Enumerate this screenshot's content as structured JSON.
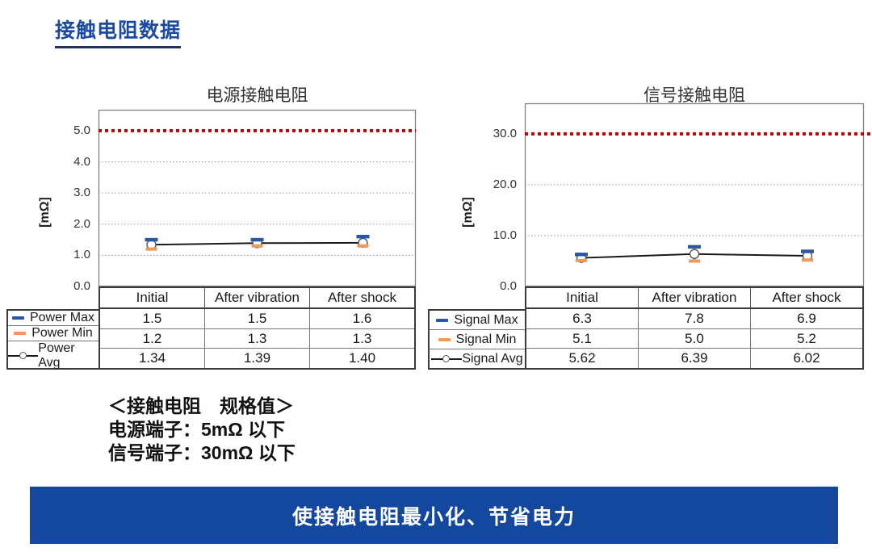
{
  "page": {
    "title": "接触电阻数据",
    "spec": {
      "heading": "＜接触电阻　规格值＞",
      "lines": [
        "电源端子：5mΩ 以下",
        "信号端子：30mΩ 以下"
      ]
    },
    "banner": "使接触电阻最小化、节省电力",
    "colors": {
      "title_blue": "#1b4aa2",
      "banner_blue": "#14489e",
      "max_blue": "#2a57a5",
      "min_orange": "#ec9b5c",
      "limit_red": "#c00000",
      "avg_black": "#1a1a1a",
      "grid_gray": "#999999",
      "frame_gray": "#808080"
    }
  },
  "chart_data": [
    {
      "type": "line",
      "title": "电源接触电阻",
      "ylabel": "[mΩ]",
      "categories": [
        "Initial",
        "After vibration",
        "After shock"
      ],
      "series": [
        {
          "name": "Power Max",
          "role": "max",
          "values": [
            1.5,
            1.5,
            1.6
          ],
          "labels": [
            "1.5",
            "1.5",
            "1.6"
          ]
        },
        {
          "name": "Power Min",
          "role": "min",
          "values": [
            1.2,
            1.3,
            1.3
          ],
          "labels": [
            "1.2",
            "1.3",
            "1.3"
          ]
        },
        {
          "name": "Power Avg",
          "role": "avg",
          "values": [
            1.34,
            1.39,
            1.4
          ],
          "labels": [
            "1.34",
            "1.39",
            "1.40"
          ]
        }
      ],
      "yticks": [
        0,
        1,
        2,
        3,
        4,
        5
      ],
      "ytick_labels": [
        "0.0",
        "1.0",
        "2.0",
        "3.0",
        "4.0",
        "5.0"
      ],
      "ylim": [
        0,
        5.67
      ],
      "limit": 5.0,
      "grid": true,
      "legend_position": "table-left"
    },
    {
      "type": "line",
      "title": "信号接触电阻",
      "ylabel": "[mΩ]",
      "categories": [
        "Initial",
        "After vibration",
        "After shock"
      ],
      "series": [
        {
          "name": "Signal Max",
          "role": "max",
          "values": [
            6.3,
            7.8,
            6.9
          ],
          "labels": [
            "6.3",
            "7.8",
            "6.9"
          ]
        },
        {
          "name": "Signal Min",
          "role": "min",
          "values": [
            5.1,
            5.0,
            5.2
          ],
          "labels": [
            "5.1",
            "5.0",
            "5.2"
          ]
        },
        {
          "name": "Signal Avg",
          "role": "avg",
          "values": [
            5.62,
            6.39,
            6.02
          ],
          "labels": [
            "5.62",
            "6.39",
            "6.02"
          ]
        }
      ],
      "yticks": [
        0,
        10,
        20,
        30
      ],
      "ytick_labels": [
        "0.0",
        "10.0",
        "20.0",
        "30.0"
      ],
      "ylim": [
        0,
        36
      ],
      "limit": 30.0,
      "grid": true,
      "legend_position": "table-left"
    }
  ]
}
